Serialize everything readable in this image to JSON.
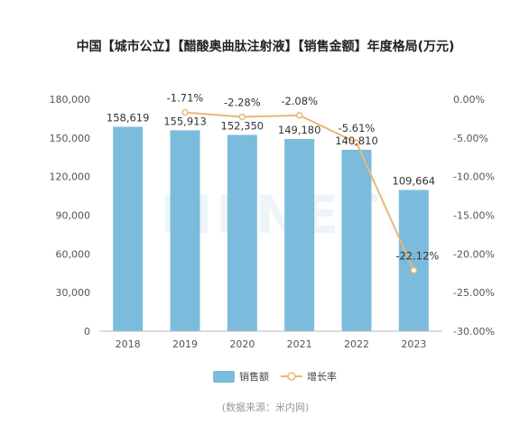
{
  "chart_data": {
    "type": "bar",
    "title": "中国【城市公立】【醋酸奥曲肽注射液】【销售金额】年度格局(万元)",
    "categories": [
      "2018",
      "2019",
      "2020",
      "2021",
      "2022",
      "2023"
    ],
    "series": [
      {
        "name": "销售额",
        "type": "bar",
        "axis": "left",
        "color": "#7bbcdc",
        "values": [
          158619,
          155913,
          152350,
          149180,
          140810,
          109664
        ],
        "labels": [
          "158,619",
          "155,913",
          "152,350",
          "149,180",
          "140,810",
          "109,664"
        ]
      },
      {
        "name": "增长率",
        "type": "line",
        "axis": "right",
        "color": "#e8b87a",
        "x": [
          "2019",
          "2020",
          "2021",
          "2022",
          "2023"
        ],
        "values": [
          -1.71,
          -2.28,
          -2.08,
          -5.61,
          -22.12
        ],
        "labels": [
          "-1.71%",
          "-2.28%",
          "-2.08%",
          "-5.61%",
          "-22.12%"
        ]
      }
    ],
    "left_axis": {
      "ylim": [
        0,
        180000
      ],
      "ticks": [
        0,
        30000,
        60000,
        90000,
        120000,
        150000,
        180000
      ],
      "tick_labels": [
        "0",
        "30,000",
        "60,000",
        "90,000",
        "120,000",
        "150,000",
        "180,000"
      ]
    },
    "right_axis": {
      "ylim": [
        -30,
        0
      ],
      "ticks": [
        0,
        -5,
        -10,
        -15,
        -20,
        -25,
        -30
      ],
      "tick_labels": [
        "0.00%",
        "-5.00%",
        "-10.00%",
        "-15.00%",
        "-20.00%",
        "-25.00%",
        "-30.00%"
      ]
    },
    "grid": false,
    "legend": "bottom-center",
    "source_note": "(数据来源：米内网)",
    "watermark": "MENET"
  }
}
